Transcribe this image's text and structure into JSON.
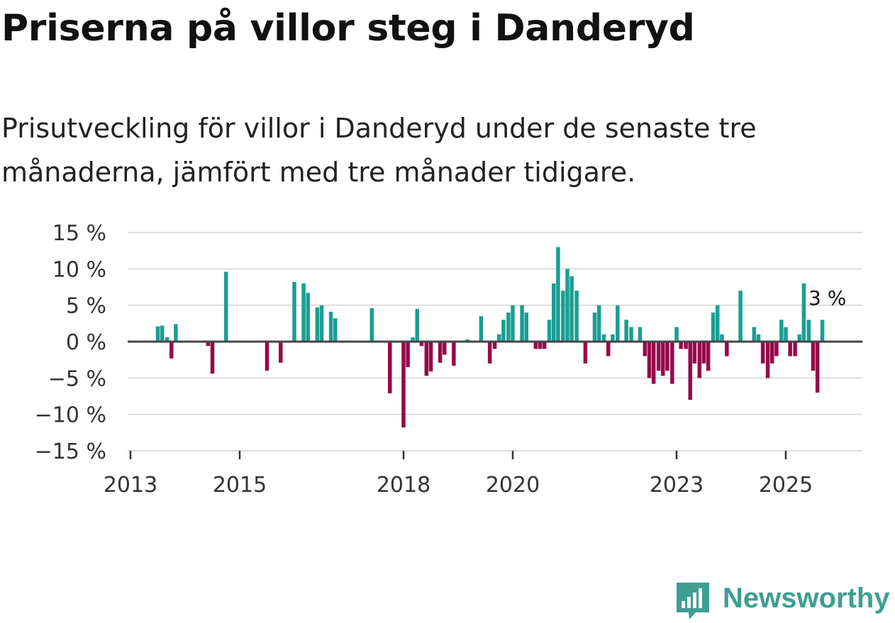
{
  "title": "Priserna på villor steg i Danderyd",
  "subtitle": "Prisutveckling för villor i Danderyd under de senaste tre månaderna, jämfört med tre månader tidigare.",
  "brand": {
    "name": "Newsworthy"
  },
  "colors": {
    "positive": "#1a9e93",
    "negative": "#96094a",
    "grid": "#dddddd",
    "zero": "#444444",
    "brand": "#3e9e92"
  },
  "chart_data": {
    "type": "bar",
    "title": "Priserna på villor steg i Danderyd",
    "xlabel": "",
    "ylabel": "",
    "ylim": [
      -15,
      15
    ],
    "xlim": [
      2013.0,
      2026.4
    ],
    "y_ticks": [
      15,
      10,
      5,
      0,
      -5,
      -10,
      -15
    ],
    "y_tick_labels": [
      "15 %",
      "10 %",
      "5 %",
      "0 %",
      "−5 %",
      "−10 %",
      "−15 %"
    ],
    "x_ticks": [
      2013,
      2015,
      2018,
      2020,
      2023,
      2025
    ],
    "x_tick_labels": [
      "2013",
      "2015",
      "2018",
      "2020",
      "2023",
      "2025"
    ],
    "annotation": {
      "text": "3 %",
      "x": 2025.67,
      "y": 3
    },
    "series": [
      {
        "name": "Prisutveckling",
        "points": [
          {
            "x": 2013.5,
            "y": 2.1
          },
          {
            "x": 2013.58,
            "y": 2.2
          },
          {
            "x": 2013.67,
            "y": 0.6
          },
          {
            "x": 2013.75,
            "y": -2.3
          },
          {
            "x": 2013.83,
            "y": 2.4
          },
          {
            "x": 2014.42,
            "y": -0.6
          },
          {
            "x": 2014.5,
            "y": -4.4
          },
          {
            "x": 2014.75,
            "y": 9.6
          },
          {
            "x": 2015.5,
            "y": -4.0
          },
          {
            "x": 2015.75,
            "y": -2.9
          },
          {
            "x": 2016.0,
            "y": 8.2
          },
          {
            "x": 2016.17,
            "y": 8.0
          },
          {
            "x": 2016.25,
            "y": 6.7
          },
          {
            "x": 2016.42,
            "y": 4.7
          },
          {
            "x": 2016.5,
            "y": 5.0
          },
          {
            "x": 2016.67,
            "y": 4.1
          },
          {
            "x": 2016.75,
            "y": 3.2
          },
          {
            "x": 2017.42,
            "y": 4.6
          },
          {
            "x": 2017.75,
            "y": -7.1
          },
          {
            "x": 2018.0,
            "y": -11.8
          },
          {
            "x": 2018.08,
            "y": -3.5
          },
          {
            "x": 2018.17,
            "y": 0.6
          },
          {
            "x": 2018.25,
            "y": 4.5
          },
          {
            "x": 2018.33,
            "y": -0.6
          },
          {
            "x": 2018.42,
            "y": -4.7
          },
          {
            "x": 2018.5,
            "y": -4.1
          },
          {
            "x": 2018.67,
            "y": -2.9
          },
          {
            "x": 2018.75,
            "y": -1.8
          },
          {
            "x": 2018.92,
            "y": -3.3
          },
          {
            "x": 2019.17,
            "y": 0.3
          },
          {
            "x": 2019.42,
            "y": 3.5
          },
          {
            "x": 2019.58,
            "y": -3.0
          },
          {
            "x": 2019.67,
            "y": -1.0
          },
          {
            "x": 2019.75,
            "y": 1.0
          },
          {
            "x": 2019.83,
            "y": 3.0
          },
          {
            "x": 2019.92,
            "y": 4.0
          },
          {
            "x": 2020.0,
            "y": 5.0
          },
          {
            "x": 2020.17,
            "y": 5.0
          },
          {
            "x": 2020.25,
            "y": 4.0
          },
          {
            "x": 2020.42,
            "y": -1.0
          },
          {
            "x": 2020.5,
            "y": -1.0
          },
          {
            "x": 2020.58,
            "y": -1.0
          },
          {
            "x": 2020.67,
            "y": 3.0
          },
          {
            "x": 2020.75,
            "y": 8.0
          },
          {
            "x": 2020.83,
            "y": 13.0
          },
          {
            "x": 2020.92,
            "y": 7.0
          },
          {
            "x": 2021.0,
            "y": 10.0
          },
          {
            "x": 2021.08,
            "y": 9.0
          },
          {
            "x": 2021.17,
            "y": 7.0
          },
          {
            "x": 2021.33,
            "y": -3.0
          },
          {
            "x": 2021.5,
            "y": 4.0
          },
          {
            "x": 2021.58,
            "y": 5.0
          },
          {
            "x": 2021.67,
            "y": 1.0
          },
          {
            "x": 2021.75,
            "y": -2.0
          },
          {
            "x": 2021.83,
            "y": 1.0
          },
          {
            "x": 2021.92,
            "y": 5.0
          },
          {
            "x": 2022.08,
            "y": 3.0
          },
          {
            "x": 2022.17,
            "y": 2.0
          },
          {
            "x": 2022.33,
            "y": 2.0
          },
          {
            "x": 2022.42,
            "y": -2.0
          },
          {
            "x": 2022.5,
            "y": -5.0
          },
          {
            "x": 2022.58,
            "y": -5.8
          },
          {
            "x": 2022.67,
            "y": -4.0
          },
          {
            "x": 2022.75,
            "y": -4.7
          },
          {
            "x": 2022.83,
            "y": -4.0
          },
          {
            "x": 2022.92,
            "y": -5.8
          },
          {
            "x": 2023.0,
            "y": 2.0
          },
          {
            "x": 2023.08,
            "y": -1.0
          },
          {
            "x": 2023.17,
            "y": -1.0
          },
          {
            "x": 2023.25,
            "y": -8.0
          },
          {
            "x": 2023.33,
            "y": -3.0
          },
          {
            "x": 2023.42,
            "y": -5.0
          },
          {
            "x": 2023.5,
            "y": -3.0
          },
          {
            "x": 2023.58,
            "y": -4.0
          },
          {
            "x": 2023.67,
            "y": 4.0
          },
          {
            "x": 2023.75,
            "y": 5.0
          },
          {
            "x": 2023.83,
            "y": 1.0
          },
          {
            "x": 2023.92,
            "y": -2.0
          },
          {
            "x": 2024.17,
            "y": 7.0
          },
          {
            "x": 2024.42,
            "y": 2.0
          },
          {
            "x": 2024.5,
            "y": 1.0
          },
          {
            "x": 2024.58,
            "y": -3.0
          },
          {
            "x": 2024.67,
            "y": -5.0
          },
          {
            "x": 2024.75,
            "y": -3.0
          },
          {
            "x": 2024.83,
            "y": -2.0
          },
          {
            "x": 2024.92,
            "y": 3.0
          },
          {
            "x": 2025.0,
            "y": 2.0
          },
          {
            "x": 2025.08,
            "y": -2.0
          },
          {
            "x": 2025.17,
            "y": -2.0
          },
          {
            "x": 2025.25,
            "y": 1.0
          },
          {
            "x": 2025.33,
            "y": 8.0
          },
          {
            "x": 2025.42,
            "y": 3.0
          },
          {
            "x": 2025.5,
            "y": -4.0
          },
          {
            "x": 2025.58,
            "y": -7.0
          },
          {
            "x": 2025.67,
            "y": 3.0
          }
        ]
      }
    ]
  }
}
